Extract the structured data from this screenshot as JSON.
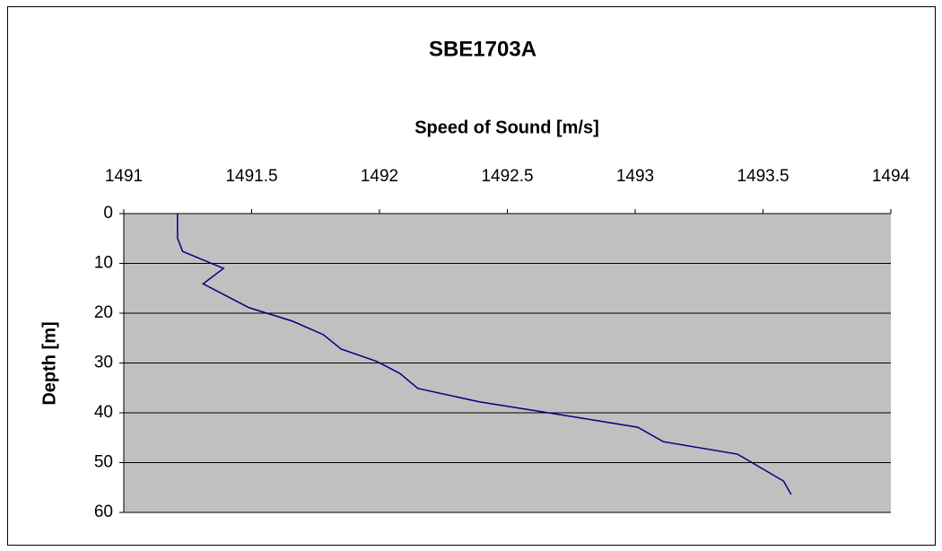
{
  "chart_data": {
    "type": "line",
    "title": "SBE1703A",
    "x_label": "Speed of Sound [m/s]",
    "y_label": "Depth [m]",
    "x": [
      1491.21,
      1491.21,
      1491.23,
      1491.39,
      1491.31,
      1491.49,
      1491.66,
      1491.78,
      1491.85,
      1491.99,
      1492.08,
      1492.15,
      1492.39,
      1492.71,
      1493.01,
      1493.11,
      1493.4,
      1493.58,
      1493.61
    ],
    "values": [
      0,
      4.9,
      7.6,
      11,
      14.1,
      18.9,
      21.6,
      24.3,
      27.2,
      29.7,
      32.1,
      35.1,
      37.8,
      40.4,
      42.9,
      45.8,
      48.3,
      53.7,
      56.4
    ],
    "color": "#000080",
    "plot_background": "#c0c0c0",
    "xlim": [
      1491,
      1494
    ],
    "xticks": [
      1491,
      1491.5,
      1492,
      1492.5,
      1493,
      1493.5,
      1494
    ],
    "ylim": [
      0,
      60
    ],
    "yticks": [
      0,
      10,
      20,
      30,
      40,
      50,
      60
    ],
    "y_inverted": true,
    "x_axis_position": "top",
    "grid": true
  }
}
